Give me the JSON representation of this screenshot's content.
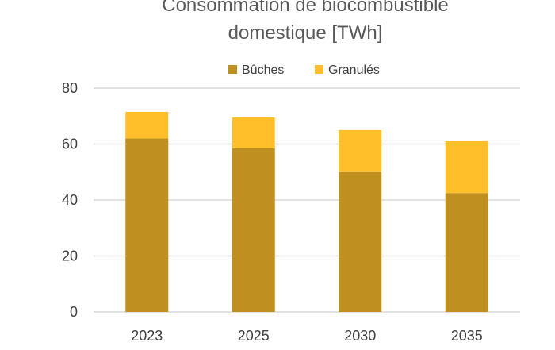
{
  "chart_data": {
    "type": "bar",
    "stacked": true,
    "title_lines": [
      "Consommation de biocombustible",
      "domestique [TWh]"
    ],
    "categories": [
      "2023",
      "2025",
      "2030",
      "2035"
    ],
    "series": [
      {
        "name": "Bûches",
        "color": "#BF8F1F",
        "values": [
          62,
          58.5,
          50,
          42.5
        ]
      },
      {
        "name": "Granulés",
        "color": "#FFBF2B",
        "values": [
          9.5,
          11,
          15,
          18.5
        ]
      }
    ],
    "ylim": [
      0,
      80
    ],
    "yticks": [
      0,
      20,
      40,
      60,
      80
    ],
    "grid": true,
    "gridline_color": "#D9D9D9",
    "legend_position": "top"
  }
}
